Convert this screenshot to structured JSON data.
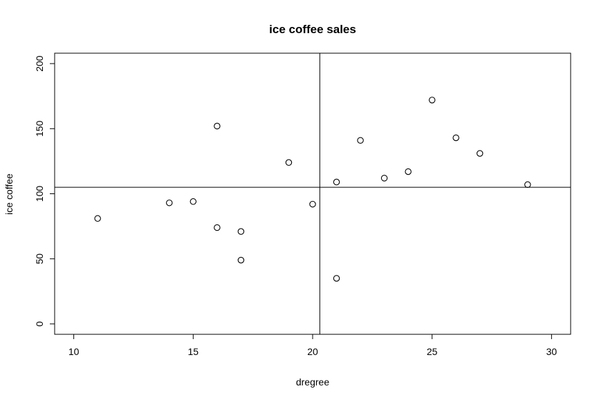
{
  "chart_data": {
    "type": "scatter",
    "title": "ice coffee sales",
    "xlabel": "dregree",
    "ylabel": "ice coffee",
    "xlim": [
      9.2,
      30.8
    ],
    "ylim": [
      -8,
      208
    ],
    "x_ticks": [
      10,
      15,
      20,
      25,
      30
    ],
    "y_ticks": [
      0,
      50,
      100,
      150,
      200
    ],
    "x_tick_labels": [
      "10",
      "15",
      "20",
      "25",
      "30"
    ],
    "y_tick_labels": [
      "0",
      "50",
      "100",
      "150",
      "200"
    ],
    "grid": false,
    "legend": "none",
    "ref_lines": {
      "vertical_x": 20.3,
      "horizontal_y": 105
    },
    "points": [
      {
        "x": 11,
        "y": 81
      },
      {
        "x": 14,
        "y": 93
      },
      {
        "x": 15,
        "y": 94
      },
      {
        "x": 16,
        "y": 152
      },
      {
        "x": 16,
        "y": 74
      },
      {
        "x": 17,
        "y": 71
      },
      {
        "x": 17,
        "y": 49
      },
      {
        "x": 19,
        "y": 124
      },
      {
        "x": 20,
        "y": 92
      },
      {
        "x": 21,
        "y": 109
      },
      {
        "x": 21,
        "y": 35
      },
      {
        "x": 22,
        "y": 141
      },
      {
        "x": 23,
        "y": 112
      },
      {
        "x": 24,
        "y": 117
      },
      {
        "x": 25,
        "y": 172
      },
      {
        "x": 26,
        "y": 143
      },
      {
        "x": 27,
        "y": 131
      },
      {
        "x": 29,
        "y": 107
      }
    ]
  }
}
